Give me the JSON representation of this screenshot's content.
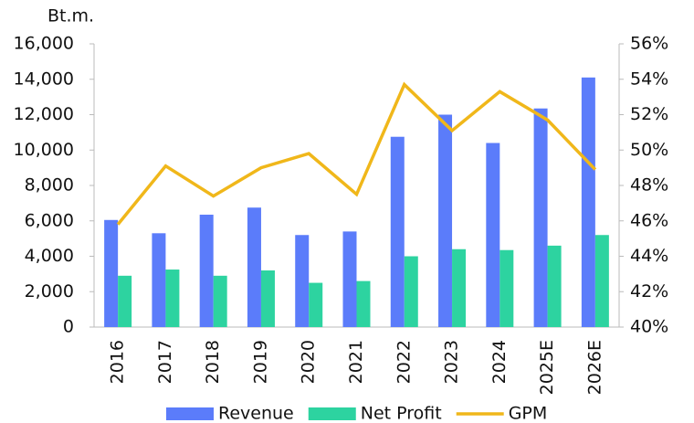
{
  "chart_data": {
    "type": "bar_line",
    "y_unit_label": "Bt.m.",
    "categories": [
      "2016",
      "2017",
      "2018",
      "2019",
      "2020",
      "2021",
      "2022",
      "2023",
      "2024",
      "2025E",
      "2026E"
    ],
    "series": [
      {
        "name": "Revenue",
        "color": "#5b7cfa",
        "type": "bar",
        "values": [
          6050,
          5300,
          6350,
          6750,
          5200,
          5400,
          10750,
          12000,
          10400,
          12350,
          14100
        ]
      },
      {
        "name": "Net Profit",
        "color": "#2dd3a0",
        "type": "bar",
        "values": [
          2900,
          3250,
          2900,
          3200,
          2500,
          2600,
          4000,
          4400,
          4350,
          4600,
          5200
        ]
      },
      {
        "name": "GPM",
        "color": "#f0b71a",
        "type": "line",
        "axis": "y2",
        "values": [
          45.8,
          49.1,
          47.4,
          49.0,
          49.8,
          47.5,
          53.7,
          51.1,
          53.3,
          51.7,
          48.9
        ]
      }
    ],
    "ylim": [
      0,
      16000
    ],
    "yticks": [
      0,
      {
        "value": 2000,
        "label": "2,000"
      },
      {
        "value": 4000,
        "label": "4,000"
      },
      {
        "value": 6000,
        "label": "6,000"
      },
      {
        "value": 8000,
        "label": "8,000"
      },
      {
        "value": 10000,
        "label": "10,000"
      },
      {
        "value": 12000,
        "label": "12,000"
      },
      {
        "value": 14000,
        "label": "14,000"
      },
      {
        "value": 16000,
        "label": "16,000"
      }
    ],
    "y2lim": [
      40,
      56
    ],
    "y2ticks": [
      {
        "value": 40,
        "label": "40%"
      },
      {
        "value": 42,
        "label": "42%"
      },
      {
        "value": 44,
        "label": "44%"
      },
      {
        "value": 46,
        "label": "46%"
      },
      {
        "value": 48,
        "label": "48%"
      },
      {
        "value": 50,
        "label": "50%"
      },
      {
        "value": 52,
        "label": "52%"
      },
      {
        "value": 54,
        "label": "54%"
      },
      {
        "value": 56,
        "label": "56%"
      }
    ],
    "grid": false,
    "legend": "bottom"
  }
}
